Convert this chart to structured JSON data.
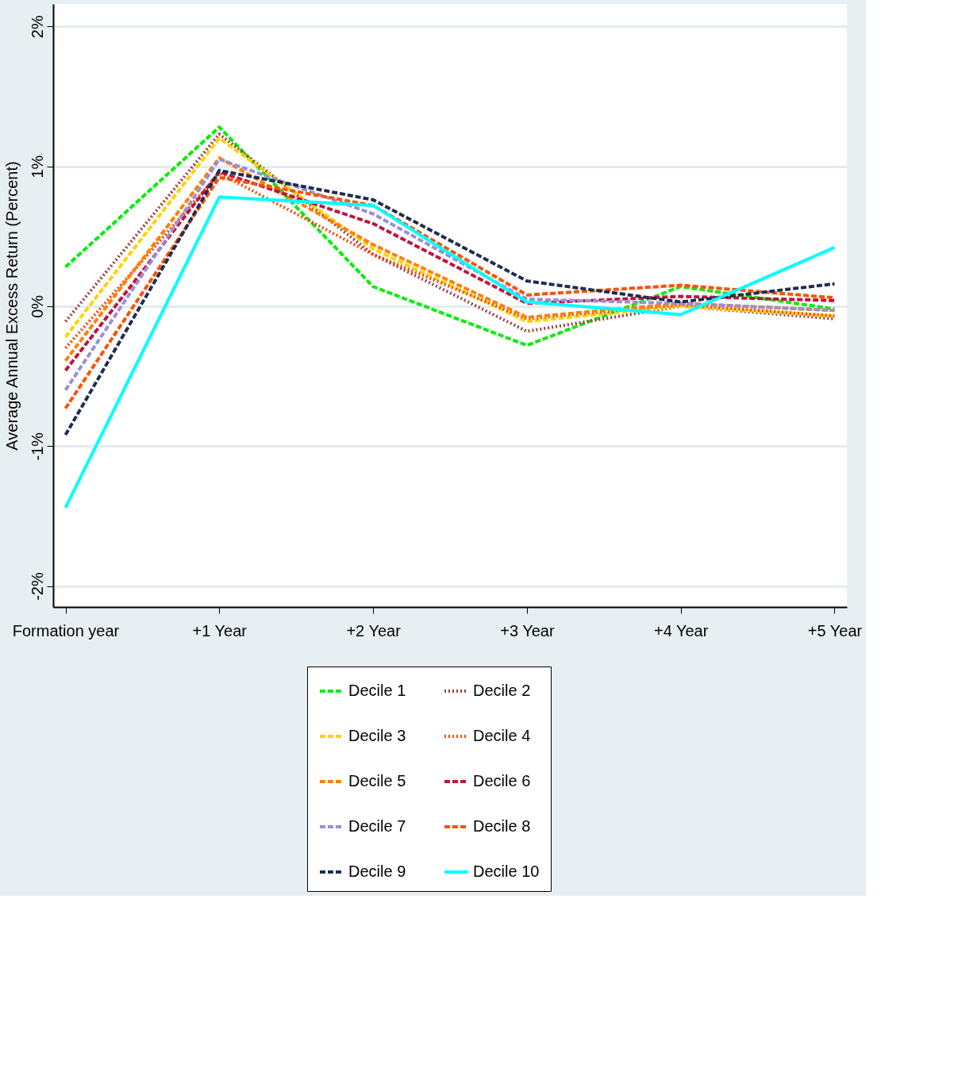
{
  "chart_data": {
    "type": "line",
    "ylabel": "Average Annual Excess Return (Percent)",
    "categories": [
      "Formation year",
      "+1 Year",
      "+2 Year",
      "+3 Year",
      "+4 Year",
      "+5 Year"
    ],
    "ylim": [
      -2.15,
      2.16
    ],
    "yticks": [
      {
        "value": -2,
        "label": "-2%"
      },
      {
        "value": -1,
        "label": "-1%"
      },
      {
        "value": 0,
        "label": "0%"
      },
      {
        "value": 1,
        "label": "1%"
      },
      {
        "value": 2,
        "label": "2%"
      }
    ],
    "grid": "y",
    "legend": "bottom",
    "marker": "none",
    "series": [
      {
        "name": "Decile 1",
        "color": "#00ee00",
        "line_style": "dashed",
        "values": [
          0.28,
          1.28,
          0.14,
          -0.28,
          0.14,
          -0.02
        ]
      },
      {
        "name": "Decile 2",
        "color": "#a0403c",
        "line_style": "dotted",
        "values": [
          -0.11,
          1.23,
          0.37,
          -0.18,
          0.0,
          -0.09
        ]
      },
      {
        "name": "Decile 3",
        "color": "#ffd200",
        "line_style": "dashed",
        "values": [
          -0.22,
          1.2,
          0.41,
          -0.11,
          0.0,
          -0.07
        ]
      },
      {
        "name": "Decile 4",
        "color": "#ff4500",
        "line_style": "dotted",
        "values": [
          -0.3,
          0.95,
          0.37,
          -0.09,
          0.01,
          -0.07
        ]
      },
      {
        "name": "Decile 5",
        "color": "#ff8000",
        "line_style": "dashed",
        "values": [
          -0.39,
          1.06,
          0.44,
          -0.08,
          0.02,
          -0.03
        ]
      },
      {
        "name": "Decile 6",
        "color": "#c0143c",
        "line_style": "dashed",
        "values": [
          -0.46,
          0.96,
          0.59,
          0.02,
          0.07,
          0.04
        ]
      },
      {
        "name": "Decile 7",
        "color": "#9a8fd6",
        "line_style": "dashed",
        "values": [
          -0.6,
          1.05,
          0.66,
          0.05,
          0.02,
          -0.03
        ]
      },
      {
        "name": "Decile 8",
        "color": "#ff5000",
        "line_style": "dashed",
        "values": [
          -0.73,
          0.92,
          0.72,
          0.08,
          0.15,
          0.06
        ]
      },
      {
        "name": "Decile 9",
        "color": "#1e2d50",
        "line_style": "dashed",
        "values": [
          -0.92,
          0.97,
          0.76,
          0.18,
          0.03,
          0.16
        ]
      },
      {
        "name": "Decile 10",
        "color": "#00ffff",
        "line_style": "solid",
        "values": [
          -1.44,
          0.78,
          0.72,
          0.03,
          -0.06,
          0.42
        ]
      }
    ]
  }
}
